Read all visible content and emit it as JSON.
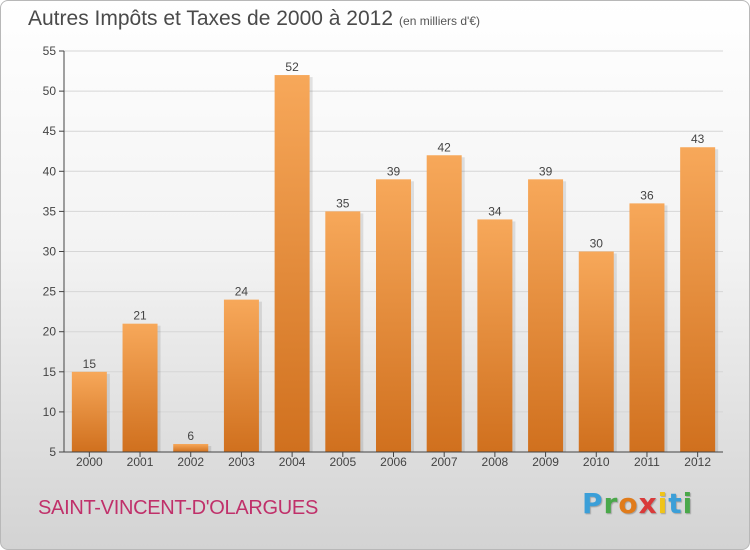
{
  "header": {
    "title": "Autres Impôts et Taxes de 2000 à 2012",
    "unit": "(en milliers d'€)"
  },
  "footer": {
    "commune": "SAINT-VINCENT-D'OLARGUES",
    "logo_letters": [
      "P",
      "r",
      "o",
      "x",
      "i",
      "t",
      "i"
    ],
    "logo_colors": [
      "#3b9fd8",
      "#4aa84a",
      "#e07b1a",
      "#d93a3a",
      "#f0c419",
      "#3b9fd8",
      "#4aa84a"
    ]
  },
  "colors": {
    "bar_top": "#f7a85a",
    "bar_bottom": "#d0701e",
    "grid": "#d6d6d6",
    "axis": "#444444"
  },
  "chart_data": {
    "type": "bar",
    "categories": [
      "2000",
      "2001",
      "2002",
      "2003",
      "2004",
      "2005",
      "2006",
      "2007",
      "2008",
      "2009",
      "2010",
      "2011",
      "2012"
    ],
    "values": [
      15,
      21,
      6,
      24,
      52,
      35,
      39,
      42,
      34,
      39,
      30,
      36,
      43
    ],
    "title": "Autres Impôts et Taxes de 2000 à 2012",
    "ylim": [
      5,
      55
    ],
    "yticks": [
      5,
      10,
      15,
      20,
      25,
      30,
      35,
      40,
      45,
      50,
      55
    ],
    "grid": true,
    "legend": "none"
  }
}
